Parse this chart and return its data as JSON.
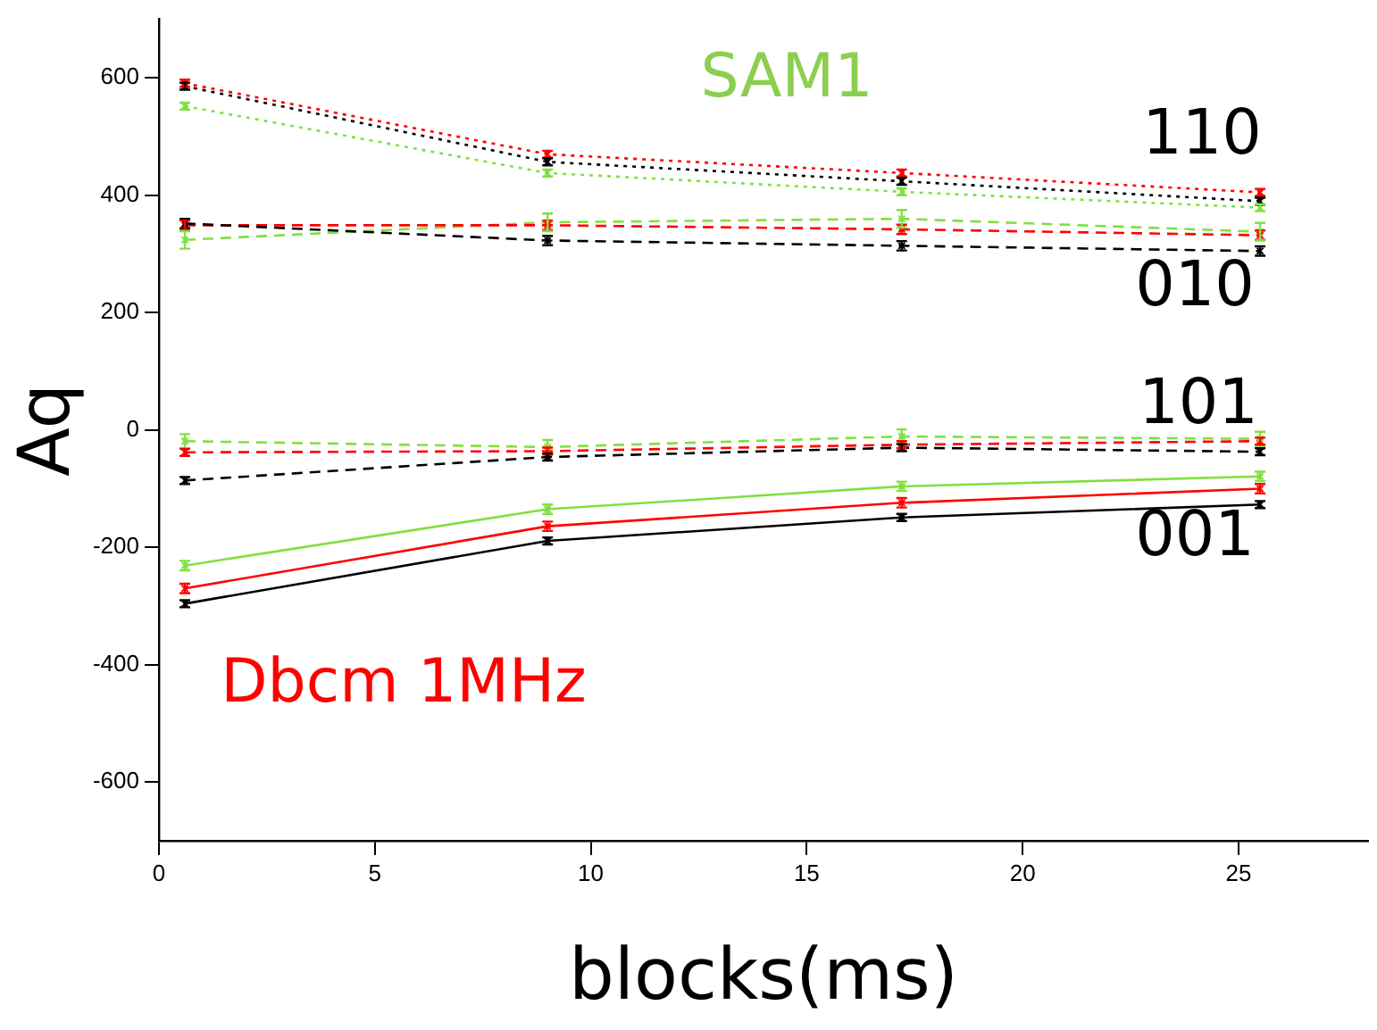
{
  "chart_data": {
    "type": "line",
    "xlabel": "blocks(ms)",
    "ylabel": "Aq",
    "x": [
      0.6,
      9,
      17.2,
      25.5
    ],
    "xlim": [
      0,
      28
    ],
    "xticks": [
      0,
      5,
      10,
      15,
      20,
      25
    ],
    "ylim": [
      -700,
      700
    ],
    "yticks": [
      -600,
      -400,
      -200,
      0,
      200,
      400,
      600
    ],
    "grid": false,
    "legend": false,
    "marker": "cross",
    "series": [
      {
        "color": "#ff0000",
        "line_style": "dotted",
        "values": [
          591,
          470,
          438,
          405
        ],
        "errors": [
          6,
          6,
          6,
          6
        ]
      },
      {
        "color": "#000000",
        "line_style": "dotted",
        "values": [
          586,
          457,
          424,
          390
        ],
        "errors": [
          6,
          6,
          6,
          6
        ]
      },
      {
        "color": "#80e040",
        "line_style": "dotted",
        "values": [
          552,
          438,
          406,
          379
        ],
        "errors": [
          6,
          6,
          6,
          6
        ]
      },
      {
        "color": "#000000",
        "line_style": "dashed",
        "values": [
          352,
          323,
          314,
          305
        ],
        "errors": [
          8,
          8,
          8,
          8
        ]
      },
      {
        "color": "#ff0000",
        "line_style": "dashed",
        "values": [
          349,
          349,
          342,
          332
        ],
        "errors": [
          8,
          8,
          8,
          8
        ]
      },
      {
        "color": "#80e040",
        "line_style": "dashed",
        "values": [
          324,
          354,
          360,
          338
        ],
        "errors": [
          15,
          15,
          15,
          15
        ]
      },
      {
        "color": "#80e040",
        "line_style": "dashed",
        "values": [
          -19,
          -29,
          -11,
          -15
        ],
        "errors": [
          12,
          12,
          12,
          12
        ]
      },
      {
        "color": "#ff0000",
        "line_style": "dashed",
        "values": [
          -38,
          -36,
          -25,
          -19
        ],
        "errors": [
          6,
          6,
          6,
          6
        ]
      },
      {
        "color": "#000000",
        "line_style": "dashed",
        "values": [
          -86,
          -46,
          -30,
          -37
        ],
        "errors": [
          6,
          6,
          6,
          6
        ]
      },
      {
        "color": "#80e040",
        "line_style": "solid",
        "values": [
          -231,
          -135,
          -96,
          -79
        ],
        "errors": [
          8,
          8,
          8,
          8
        ]
      },
      {
        "color": "#ff0000",
        "line_style": "solid",
        "values": [
          -270,
          -164,
          -124,
          -100
        ],
        "errors": [
          8,
          8,
          8,
          8
        ]
      },
      {
        "color": "#000000",
        "line_style": "solid",
        "values": [
          -296,
          -189,
          -149,
          -127
        ],
        "errors": [
          6,
          6,
          6,
          6
        ]
      }
    ],
    "annotations": [
      "SAM1",
      "Dbcm 1MHz",
      "110",
      "010",
      "101",
      "001"
    ]
  }
}
